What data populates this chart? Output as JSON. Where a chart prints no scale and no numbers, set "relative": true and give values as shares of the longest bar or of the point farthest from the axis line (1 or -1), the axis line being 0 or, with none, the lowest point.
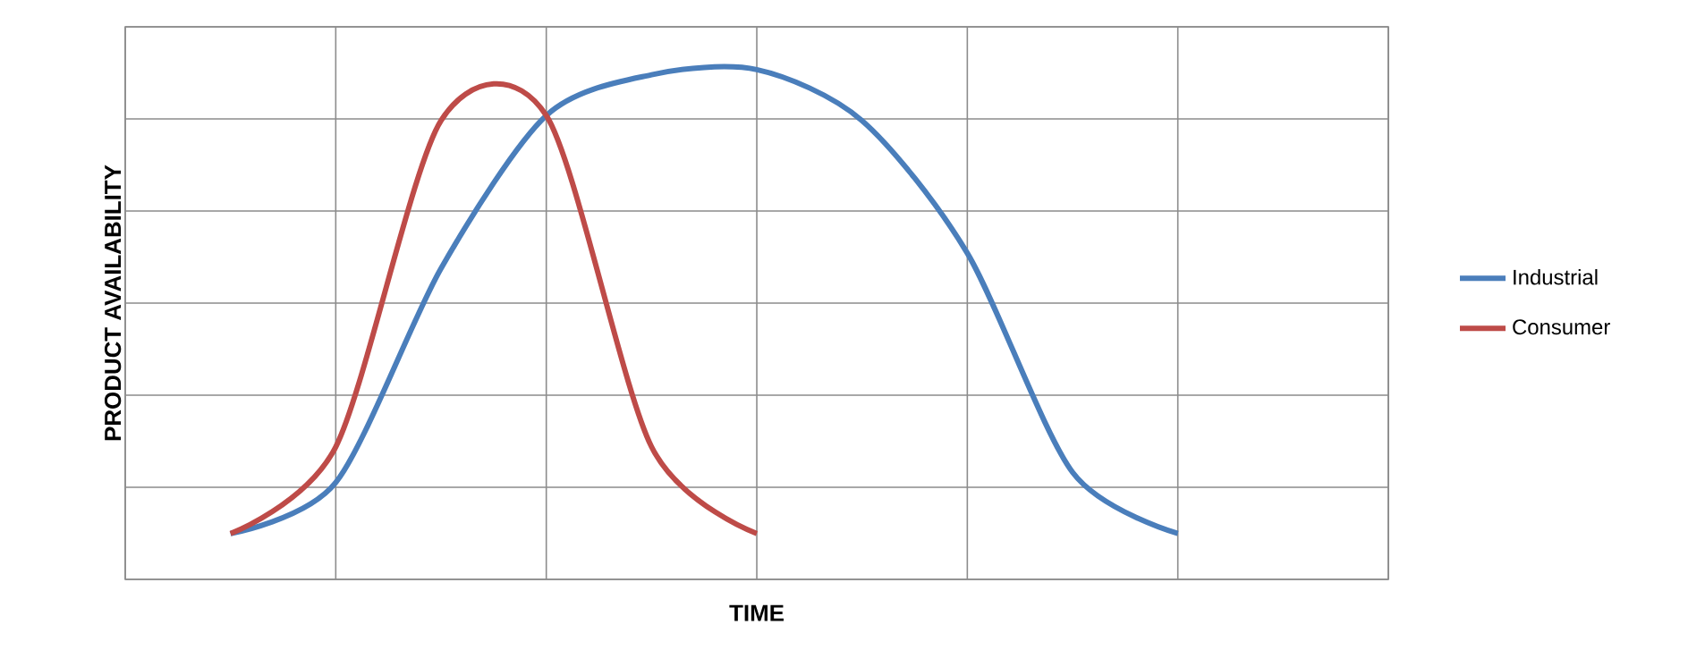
{
  "chart_data": {
    "type": "line",
    "relative": true,
    "xlabel": "TIME",
    "ylabel": "PRODUCT AVAILABILITY",
    "categories": [
      null,
      null,
      null,
      null,
      null,
      null,
      null,
      null,
      null,
      null,
      null,
      null,
      null
    ],
    "series": [
      {
        "name": "Industrial",
        "color": "#4a7ebb",
        "values": [
          null,
          0.09,
          0.19,
          0.61,
          0.91,
          0.99,
          1,
          0.9,
          0.64,
          0.21,
          0.09,
          null,
          null
        ]
      },
      {
        "name": "Consumer",
        "color": "#be4b48",
        "values": [
          null,
          0.09,
          0.26,
          0.9,
          0.91,
          0.26,
          0.09,
          null,
          null,
          null,
          null,
          null,
          null
        ]
      }
    ],
    "grid": true,
    "legend": "right",
    "marker": "none",
    "line_style": "solid"
  }
}
